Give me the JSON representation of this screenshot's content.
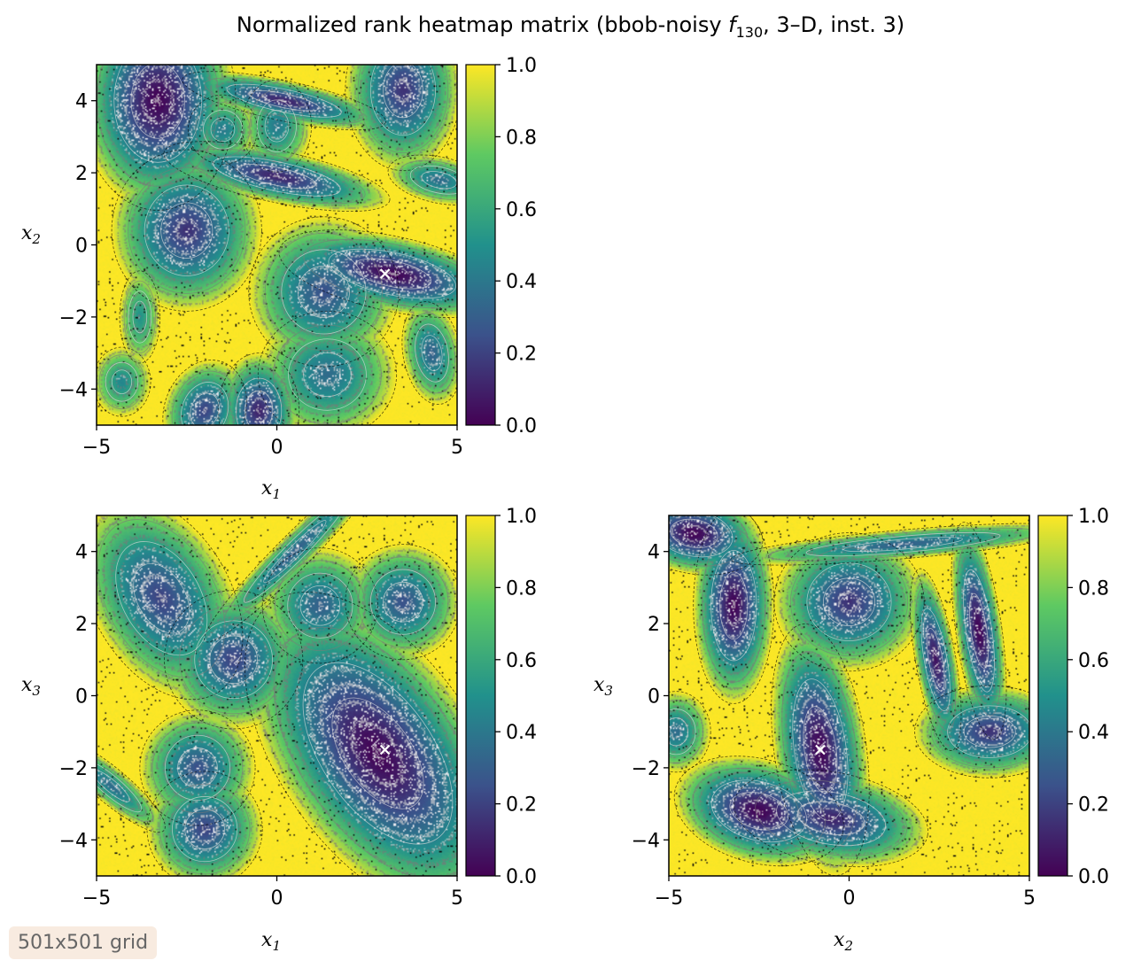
{
  "title": {
    "prefix": "Normalized rank heatmap matrix (bbob-noisy ",
    "func_letter": "f",
    "func_sub": "130",
    "suffix": ", 3–D, inst. 3)"
  },
  "badge": "501x501 grid",
  "colormap": {
    "name": "viridis",
    "stops": [
      "#440154",
      "#3b528b",
      "#21918c",
      "#5ec962",
      "#fde725"
    ],
    "contour_light": "#d8d8d8",
    "contour_dark": "#000000"
  },
  "colorbar": {
    "ticks": [
      "0.0",
      "0.2",
      "0.4",
      "0.6",
      "0.8",
      "1.0"
    ],
    "range": [
      0,
      1
    ]
  },
  "chart_data": [
    {
      "type": "heatmap",
      "id": "x1x2",
      "xlabel": "x1",
      "ylabel": "x2",
      "xlim": [
        -5,
        5
      ],
      "ylim": [
        -5,
        5
      ],
      "xticks": [
        "−5",
        "0",
        "5"
      ],
      "yticks": [
        "−4",
        "−2",
        "0",
        "2",
        "4"
      ],
      "basins": [
        {
          "cx": -3.3,
          "cy": 4.0,
          "rx": 1.35,
          "ry": 1.9,
          "rot": 0,
          "min": 0.0
        },
        {
          "cx": 0.2,
          "cy": 4.0,
          "rx": 1.8,
          "ry": 0.35,
          "rot": -12,
          "min": 0.1
        },
        {
          "cx": -1.5,
          "cy": 3.2,
          "rx": 0.6,
          "ry": 0.6,
          "rot": 0,
          "min": 0.4
        },
        {
          "cx": 0.0,
          "cy": 3.3,
          "rx": 0.6,
          "ry": 0.8,
          "rot": 0,
          "min": 0.4
        },
        {
          "cx": 0.0,
          "cy": 1.9,
          "rx": 2.0,
          "ry": 0.45,
          "rot": -12,
          "min": 0.1
        },
        {
          "cx": -2.5,
          "cy": 0.4,
          "rx": 1.3,
          "ry": 1.4,
          "rot": 0,
          "min": 0.15
        },
        {
          "cx": 3.2,
          "cy": -0.8,
          "rx": 2.0,
          "ry": 0.65,
          "rot": -12,
          "min": 0.0
        },
        {
          "cx": 1.3,
          "cy": -1.3,
          "rx": 1.3,
          "ry": 1.3,
          "rot": 0,
          "min": 0.25
        },
        {
          "cx": 3.5,
          "cy": 4.3,
          "rx": 1.0,
          "ry": 1.4,
          "rot": 0,
          "min": 0.15
        },
        {
          "cx": 4.5,
          "cy": 1.8,
          "rx": 0.9,
          "ry": 0.4,
          "rot": -12,
          "min": 0.35
        },
        {
          "cx": 4.3,
          "cy": -3.0,
          "rx": 0.5,
          "ry": 0.9,
          "rot": 10,
          "min": 0.3
        },
        {
          "cx": 1.4,
          "cy": -3.6,
          "rx": 1.2,
          "ry": 1.1,
          "rot": 0,
          "min": 0.35
        },
        {
          "cx": -0.5,
          "cy": -4.6,
          "rx": 0.7,
          "ry": 1.0,
          "rot": 0,
          "min": 0.1
        },
        {
          "cx": -2.0,
          "cy": -4.6,
          "rx": 0.7,
          "ry": 0.9,
          "rot": -20,
          "min": 0.2
        },
        {
          "cx": -4.3,
          "cy": -3.8,
          "rx": 0.5,
          "ry": 0.6,
          "rot": 0,
          "min": 0.45
        },
        {
          "cx": -3.8,
          "cy": -2.0,
          "rx": 0.35,
          "ry": 0.8,
          "rot": 0,
          "min": 0.5
        }
      ],
      "optimum": [
        3.0,
        -0.8
      ]
    },
    {
      "type": "heatmap",
      "id": "x1x3",
      "xlabel": "x1",
      "ylabel": "x3",
      "xlim": [
        -5,
        5
      ],
      "ylim": [
        -5,
        5
      ],
      "xticks": [
        "−5",
        "0",
        "5"
      ],
      "yticks": [
        "−4",
        "−2",
        "0",
        "2",
        "4"
      ],
      "basins": [
        {
          "cx": -3.2,
          "cy": 2.7,
          "rx": 1.2,
          "ry": 1.9,
          "rot": 30,
          "min": 0.2
        },
        {
          "cx": -1.2,
          "cy": 1.0,
          "rx": 1.2,
          "ry": 1.2,
          "rot": 0,
          "min": 0.2
        },
        {
          "cx": 1.2,
          "cy": 2.5,
          "rx": 1.0,
          "ry": 1.0,
          "rot": 0,
          "min": 0.3
        },
        {
          "cx": 3.5,
          "cy": 2.6,
          "rx": 1.0,
          "ry": 1.0,
          "rot": 0,
          "min": 0.25
        },
        {
          "cx": 2.8,
          "cy": -1.6,
          "rx": 1.7,
          "ry": 3.2,
          "rot": 35,
          "min": 0.0
        },
        {
          "cx": -2.2,
          "cy": -2.0,
          "rx": 1.0,
          "ry": 1.0,
          "rot": 0,
          "min": 0.25
        },
        {
          "cx": -2.0,
          "cy": -3.7,
          "rx": 1.0,
          "ry": 1.0,
          "rot": 0,
          "min": 0.2
        },
        {
          "cx": 0.5,
          "cy": 4.0,
          "rx": 2.2,
          "ry": 0.3,
          "rot": 45,
          "min": 0.3
        },
        {
          "cx": -4.6,
          "cy": -2.5,
          "rx": 1.2,
          "ry": 0.3,
          "rot": -40,
          "min": 0.35
        }
      ],
      "optimum": [
        3.0,
        -1.5
      ]
    },
    {
      "type": "heatmap",
      "id": "x2x3",
      "xlabel": "x2",
      "ylabel": "x3",
      "xlim": [
        -5,
        5
      ],
      "ylim": [
        -5,
        5
      ],
      "xticks": [
        "−5",
        "0",
        "5"
      ],
      "yticks": [
        "−4",
        "−2",
        "0",
        "2",
        "4"
      ],
      "basins": [
        {
          "cx": -3.2,
          "cy": 2.5,
          "rx": 0.7,
          "ry": 1.7,
          "rot": 0,
          "min": 0.0
        },
        {
          "cx": -0.8,
          "cy": -1.5,
          "rx": 0.8,
          "ry": 2.2,
          "rot": 8,
          "min": 0.0
        },
        {
          "cx": 0.0,
          "cy": 2.6,
          "rx": 1.3,
          "ry": 1.2,
          "rot": 0,
          "min": 0.15
        },
        {
          "cx": 2.4,
          "cy": 1.0,
          "rx": 0.35,
          "ry": 1.6,
          "rot": 10,
          "min": 0.05
        },
        {
          "cx": 3.6,
          "cy": 1.8,
          "rx": 0.4,
          "ry": 1.9,
          "rot": 8,
          "min": 0.0
        },
        {
          "cx": 3.9,
          "cy": -1.0,
          "rx": 1.3,
          "ry": 0.8,
          "rot": 0,
          "min": 0.15
        },
        {
          "cx": -2.5,
          "cy": -3.2,
          "rx": 1.5,
          "ry": 0.9,
          "rot": -15,
          "min": 0.0
        },
        {
          "cx": -0.5,
          "cy": -3.4,
          "rx": 1.7,
          "ry": 0.8,
          "rot": -10,
          "min": 0.1
        },
        {
          "cx": -4.3,
          "cy": 4.5,
          "rx": 1.2,
          "ry": 0.7,
          "rot": -10,
          "min": 0.0
        },
        {
          "cx": 1.5,
          "cy": 4.2,
          "rx": 3.0,
          "ry": 0.25,
          "rot": 5,
          "min": 0.3
        },
        {
          "cx": -4.8,
          "cy": -1.0,
          "rx": 0.6,
          "ry": 0.7,
          "rot": 0,
          "min": 0.35
        }
      ],
      "optimum": [
        -0.8,
        -1.5
      ]
    }
  ]
}
